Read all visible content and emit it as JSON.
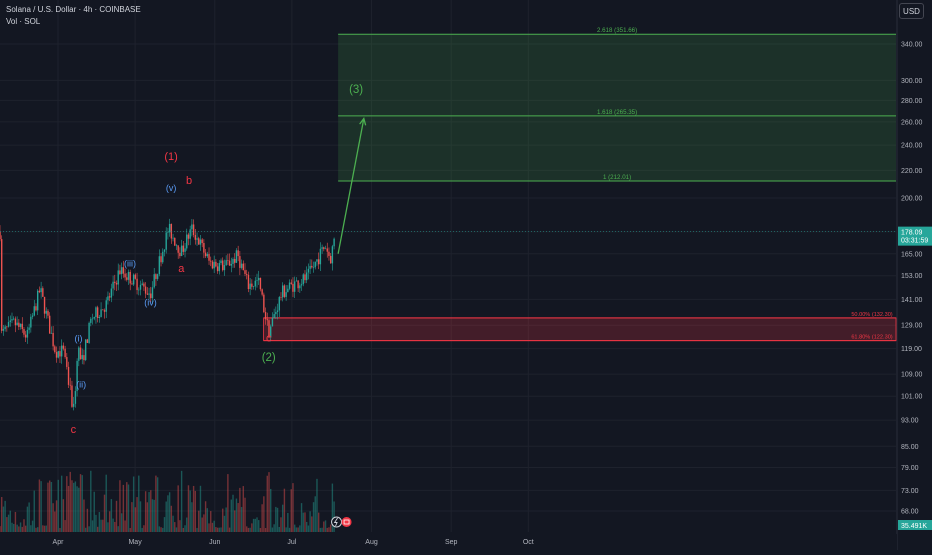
{
  "header": {
    "title": "Solana / U.S. Dollar · 4h · COINBASE",
    "indicator": "Vol · SOL"
  },
  "currency": "USD",
  "last_price": {
    "value": "178.09",
    "countdown": "03:31:59"
  },
  "volume_label": "35.491K",
  "colors": {
    "background": "#131722",
    "up": "#26a69a",
    "down": "#ef5350",
    "target_zone": "#4caf50",
    "support_zone": "#f23645",
    "wave_main": "#f23645",
    "wave_minor": "#5b9cf6",
    "wave_green": "#4caf50",
    "axis_text": "#b2b5be"
  },
  "chart_data": {
    "type": "candlestick",
    "title": "Solana / U.S. Dollar · 4h · COINBASE",
    "x_ticks": [
      "Apr",
      "May",
      "Jun",
      "Jul",
      "Aug",
      "Sep",
      "Oct"
    ],
    "y_ticks": [
      68,
      73,
      79,
      85,
      93,
      101,
      109,
      119,
      129,
      141,
      153,
      165,
      178,
      200,
      220,
      240,
      260,
      280,
      300,
      340
    ],
    "y_scale": "log",
    "ylim": [
      64,
      370
    ],
    "price_path_waypoints": [
      {
        "date": "2025-03-10",
        "price": 125
      },
      {
        "date": "2025-03-15",
        "price": 130
      },
      {
        "date": "2025-03-20",
        "price": 124
      },
      {
        "date": "2025-03-25",
        "price": 146
      },
      {
        "date": "2025-03-31",
        "price": 118
      },
      {
        "date": "2025-04-03",
        "price": 118
      },
      {
        "date": "2025-04-07",
        "price": 96
      },
      {
        "date": "2025-04-09",
        "price": 120
      },
      {
        "date": "2025-04-10",
        "price": 112
      },
      {
        "date": "2025-04-14",
        "price": 132
      },
      {
        "date": "2025-04-20",
        "price": 139
      },
      {
        "date": "2025-04-25",
        "price": 156
      },
      {
        "date": "2025-05-01",
        "price": 150
      },
      {
        "date": "2025-05-07",
        "price": 144
      },
      {
        "date": "2025-05-14",
        "price": 180
      },
      {
        "date": "2025-05-19",
        "price": 166
      },
      {
        "date": "2025-05-23",
        "price": 180
      },
      {
        "date": "2025-05-26",
        "price": 172
      },
      {
        "date": "2025-05-30",
        "price": 160
      },
      {
        "date": "2025-06-05",
        "price": 158
      },
      {
        "date": "2025-06-10",
        "price": 164
      },
      {
        "date": "2025-06-14",
        "price": 148
      },
      {
        "date": "2025-06-18",
        "price": 150
      },
      {
        "date": "2025-06-22",
        "price": 126
      },
      {
        "date": "2025-06-27",
        "price": 144
      },
      {
        "date": "2025-07-01",
        "price": 148
      },
      {
        "date": "2025-07-07",
        "price": 152
      },
      {
        "date": "2025-07-11",
        "price": 162
      },
      {
        "date": "2025-07-14",
        "price": 170
      },
      {
        "date": "2025-07-16",
        "price": 162
      },
      {
        "date": "2025-07-18",
        "price": 178
      }
    ],
    "fib_levels": [
      {
        "label": "2.618 (351.66)",
        "value": 351.66
      },
      {
        "label": "1.618 (265.35)",
        "value": 265.35
      },
      {
        "label": "1 (212.01)",
        "value": 212.01
      },
      {
        "label": "50.00% (132.30)",
        "value": 132.3
      },
      {
        "label": "61.80% (122.30)",
        "value": 122.3
      }
    ],
    "target_zone": {
      "from_date": "2025-07-19",
      "to_date": "2025-10-31",
      "low": 212.01,
      "high": 351.66
    },
    "support_zone": {
      "from_date": "2025-06-20",
      "to_date": "2025-10-31",
      "low": 122.3,
      "high": 132.3
    },
    "projection_arrow": {
      "from": {
        "date": "2025-07-19",
        "price": 165
      },
      "to": {
        "date": "2025-07-29",
        "price": 263
      }
    },
    "wave_labels": [
      {
        "text": "(1)",
        "date": "2025-05-15",
        "price": 228,
        "group": "main"
      },
      {
        "text": "b",
        "date": "2025-05-22",
        "price": 210,
        "group": "main"
      },
      {
        "text": "a",
        "date": "2025-05-19",
        "price": 155,
        "group": "main"
      },
      {
        "text": "c",
        "date": "2025-04-07",
        "price": 89,
        "group": "main"
      },
      {
        "text": "c",
        "date": "2025-06-22",
        "price": 122,
        "group": "main"
      },
      {
        "text": "(2)",
        "date": "2025-06-22",
        "price": 114,
        "group": "green"
      },
      {
        "text": "(3)",
        "date": "2025-07-26",
        "price": 287,
        "group": "green"
      },
      {
        "text": "(v)",
        "date": "2025-05-15",
        "price": 205,
        "group": "minor"
      },
      {
        "text": "(iii)",
        "date": "2025-04-29",
        "price": 158,
        "group": "minor"
      },
      {
        "text": "(iv)",
        "date": "2025-05-07",
        "price": 138,
        "group": "minor"
      },
      {
        "text": "(i)",
        "date": "2025-04-09",
        "price": 122,
        "group": "minor"
      },
      {
        "text": "(ii)",
        "date": "2025-04-10",
        "price": 104,
        "group": "minor"
      }
    ],
    "volume": {
      "label": "35.491K",
      "relative_range": [
        0.1,
        1.0
      ]
    },
    "grid": true,
    "legend": "none"
  }
}
